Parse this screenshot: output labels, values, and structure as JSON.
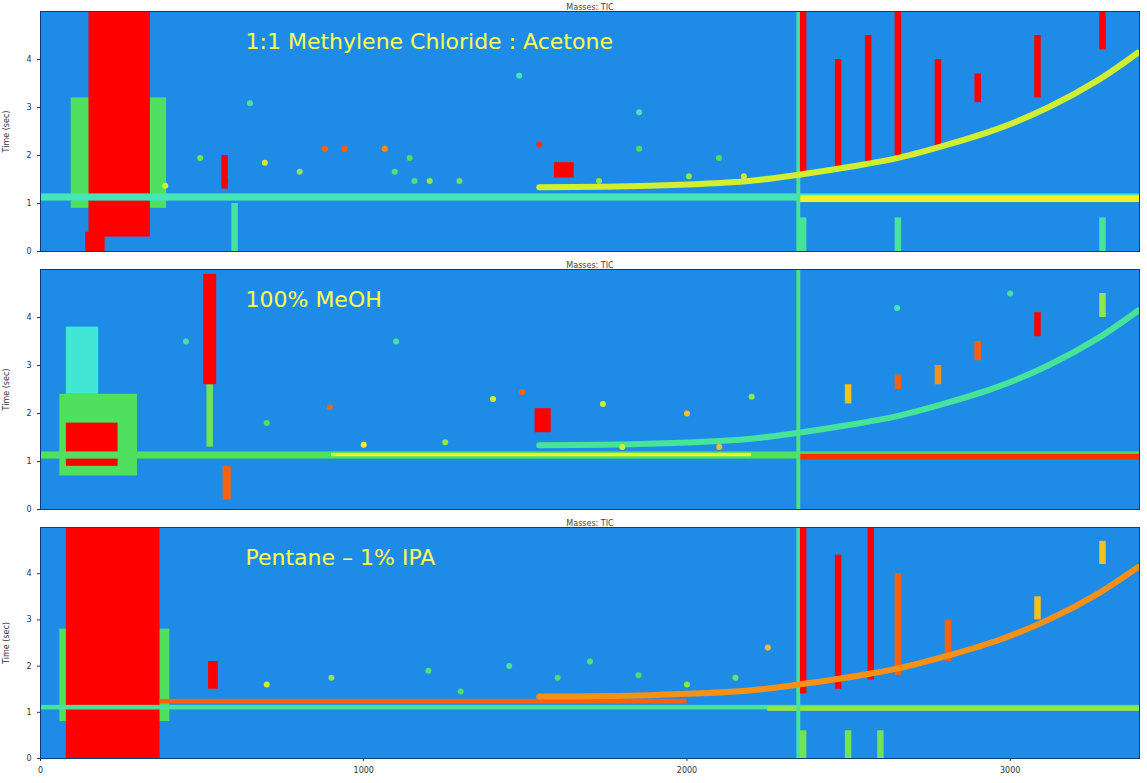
{
  "chart_data": [
    {
      "type": "heatmap",
      "title": "1:1 Methylene Chloride : Acetone",
      "subtitle": "Masses: TIC",
      "ylabel": "Time (sec)",
      "xlim": [
        0,
        3400
      ],
      "ylim": [
        0,
        5
      ],
      "yticks": [
        0,
        1,
        2,
        3,
        4
      ],
      "tick_labels": "y",
      "zlim": [
        0,
        1
      ],
      "cells": [
        {
          "x1": 95,
          "x2": 390,
          "y1": 0.9,
          "y2": 3.2,
          "z": 0.5
        },
        {
          "x1": 150,
          "x2": 340,
          "y1": 0.3,
          "y2": 5,
          "z": 1
        },
        {
          "x1": 140,
          "x2": 200,
          "y1": 0,
          "y2": 0.4,
          "z": 1
        },
        {
          "x1": 0,
          "x2": 3400,
          "y1": 1.05,
          "y2": 1.2,
          "z": 0.35
        },
        {
          "x1": 2346,
          "x2": 3400,
          "y1": 1.02,
          "y2": 1.16,
          "z": 0.75
        },
        {
          "x1": 2340,
          "x2": 2352,
          "y1": 0,
          "y2": 5,
          "z": 0.4
        },
        {
          "x1": 592,
          "x2": 612,
          "y1": 0,
          "y2": 1,
          "z": 0.4
        },
        {
          "x1": 561,
          "x2": 581,
          "y1": 1.3,
          "y2": 2.0,
          "z": 1
        },
        {
          "x1": 1590,
          "x2": 1651,
          "y1": 1.53,
          "y2": 1.85,
          "z": 1
        },
        {
          "x1": 2351,
          "x2": 2371,
          "y1": 1.6,
          "y2": 5,
          "z": 1
        },
        {
          "x1": 2459,
          "x2": 2479,
          "y1": 1.7,
          "y2": 4.0,
          "z": 1
        },
        {
          "x1": 2552,
          "x2": 2572,
          "y1": 1.8,
          "y2": 4.5,
          "z": 1
        },
        {
          "x1": 2644,
          "x2": 2664,
          "y1": 2.0,
          "y2": 5,
          "z": 1
        },
        {
          "x1": 2768,
          "x2": 2788,
          "y1": 2.2,
          "y2": 4.0,
          "z": 1
        },
        {
          "x1": 2891,
          "x2": 2911,
          "y1": 3.1,
          "y2": 3.7,
          "z": 1
        },
        {
          "x1": 3076,
          "x2": 3096,
          "y1": 3.2,
          "y2": 4.5,
          "z": 1
        },
        {
          "x1": 3277,
          "x2": 3297,
          "y1": 4.2,
          "y2": 5,
          "z": 1
        },
        {
          "x1": 2351,
          "x2": 2371,
          "y1": 0,
          "y2": 0.7,
          "z": 0.4
        },
        {
          "x1": 2644,
          "x2": 2664,
          "y1": 0,
          "y2": 0.7,
          "z": 0.4
        },
        {
          "x1": 3277,
          "x2": 3297,
          "y1": 0,
          "y2": 0.7,
          "z": 0.4
        }
      ],
      "spots": [
        {
          "x": 571,
          "y": 1.47,
          "z": 1
        },
        {
          "x": 880,
          "y": 2.14,
          "z": 0.9
        },
        {
          "x": 941,
          "y": 2.14,
          "z": 0.9
        },
        {
          "x": 1065,
          "y": 2.14,
          "z": 0.85
        },
        {
          "x": 694,
          "y": 1.85,
          "z": 0.7
        },
        {
          "x": 802,
          "y": 1.66,
          "z": 0.6
        },
        {
          "x": 1142,
          "y": 1.95,
          "z": 0.5
        },
        {
          "x": 1204,
          "y": 1.47,
          "z": 0.6
        },
        {
          "x": 1296,
          "y": 1.47,
          "z": 0.55
        },
        {
          "x": 1543,
          "y": 2.23,
          "z": 0.95
        },
        {
          "x": 1728,
          "y": 1.47,
          "z": 0.6
        },
        {
          "x": 1852,
          "y": 2.14,
          "z": 0.5
        },
        {
          "x": 2006,
          "y": 1.57,
          "z": 0.6
        },
        {
          "x": 2099,
          "y": 1.95,
          "z": 0.5
        },
        {
          "x": 2176,
          "y": 1.57,
          "z": 0.7
        },
        {
          "x": 648,
          "y": 3.09,
          "z": 0.4
        },
        {
          "x": 1481,
          "y": 3.66,
          "z": 0.35
        },
        {
          "x": 1852,
          "y": 2.9,
          "z": 0.35
        },
        {
          "x": 494,
          "y": 1.95,
          "z": 0.55
        },
        {
          "x": 386,
          "y": 1.37,
          "z": 0.7
        },
        {
          "x": 1096,
          "y": 1.66,
          "z": 0.45
        },
        {
          "x": 1157,
          "y": 1.47,
          "z": 0.45
        }
      ],
      "bleed": {
        "x": [
          1543,
          1883,
          2191,
          2346,
          2500,
          2654,
          2809,
          2963,
          3117,
          3272,
          3395
        ],
        "y": [
          1.34,
          1.37,
          1.47,
          1.6,
          1.76,
          1.95,
          2.23,
          2.56,
          3.0,
          3.57,
          4.14
        ],
        "z": 0.7
      }
    },
    {
      "type": "heatmap",
      "title": "100% MeOH",
      "subtitle": "Masses: TIC",
      "ylabel": "Time (sec)",
      "xlim": [
        0,
        3400
      ],
      "ylim": [
        0,
        5
      ],
      "yticks": [
        0,
        1,
        2,
        3,
        4
      ],
      "tick_labels": "y",
      "zlim": [
        0,
        1
      ],
      "cells": [
        {
          "x1": 60,
          "x2": 300,
          "y1": 0.7,
          "y2": 2.4,
          "z": 0.5
        },
        {
          "x1": 80,
          "x2": 180,
          "y1": 2.4,
          "y2": 3.8,
          "z": 0.3
        },
        {
          "x1": 80,
          "x2": 240,
          "y1": 0.9,
          "y2": 1.8,
          "z": 1
        },
        {
          "x1": 515,
          "x2": 535,
          "y1": 1.3,
          "y2": 2.6,
          "z": 0.55
        },
        {
          "x1": 505,
          "x2": 545,
          "y1": 2.6,
          "y2": 4.9,
          "z": 1
        },
        {
          "x1": 565,
          "x2": 590,
          "y1": 0.2,
          "y2": 0.9,
          "z": 0.9
        },
        {
          "x1": 0,
          "x2": 3400,
          "y1": 1.05,
          "y2": 1.2,
          "z": 0.5
        },
        {
          "x1": 900,
          "x2": 2200,
          "y1": 1.1,
          "y2": 1.17,
          "z": 0.75
        },
        {
          "x1": 2346,
          "x2": 3400,
          "y1": 1.03,
          "y2": 1.15,
          "z": 0.95
        },
        {
          "x1": 2340,
          "x2": 2352,
          "y1": 0,
          "y2": 5,
          "z": 0.45
        },
        {
          "x1": 1530,
          "x2": 1580,
          "y1": 1.6,
          "y2": 2.1,
          "z": 1
        },
        {
          "x1": 2490,
          "x2": 2510,
          "y1": 2.2,
          "y2": 2.6,
          "z": 0.8
        },
        {
          "x1": 2644,
          "x2": 2664,
          "y1": 2.5,
          "y2": 2.8,
          "z": 0.9
        },
        {
          "x1": 2768,
          "x2": 2788,
          "y1": 2.6,
          "y2": 3.0,
          "z": 0.85
        },
        {
          "x1": 2891,
          "x2": 2911,
          "y1": 3.1,
          "y2": 3.5,
          "z": 0.9
        },
        {
          "x1": 3076,
          "x2": 3096,
          "y1": 3.6,
          "y2": 4.1,
          "z": 1
        },
        {
          "x1": 3277,
          "x2": 3297,
          "y1": 4.0,
          "y2": 4.5,
          "z": 0.6
        }
      ],
      "spots": [
        {
          "x": 895,
          "y": 2.13,
          "z": 0.9
        },
        {
          "x": 1400,
          "y": 2.3,
          "z": 0.7
        },
        {
          "x": 1490,
          "y": 2.45,
          "z": 0.9
        },
        {
          "x": 1252,
          "y": 1.4,
          "z": 0.6
        },
        {
          "x": 1740,
          "y": 2.2,
          "z": 0.7
        },
        {
          "x": 2000,
          "y": 2.0,
          "z": 0.8
        },
        {
          "x": 2200,
          "y": 2.35,
          "z": 0.6
        },
        {
          "x": 700,
          "y": 1.8,
          "z": 0.5
        },
        {
          "x": 1000,
          "y": 1.35,
          "z": 0.75
        },
        {
          "x": 1800,
          "y": 1.3,
          "z": 0.7
        },
        {
          "x": 2100,
          "y": 1.3,
          "z": 0.8
        },
        {
          "x": 1100,
          "y": 3.5,
          "z": 0.4
        },
        {
          "x": 2650,
          "y": 4.2,
          "z": 0.35
        },
        {
          "x": 3000,
          "y": 4.5,
          "z": 0.4
        },
        {
          "x": 450,
          "y": 3.5,
          "z": 0.4
        }
      ],
      "bleed": {
        "x": [
          1543,
          1883,
          2191,
          2346,
          2500,
          2654,
          2809,
          2963,
          3117,
          3272,
          3395
        ],
        "y": [
          1.34,
          1.37,
          1.47,
          1.6,
          1.76,
          1.95,
          2.23,
          2.56,
          3.0,
          3.57,
          4.14
        ],
        "z": 0.4
      }
    },
    {
      "type": "heatmap",
      "title": "Pentane – 1% IPA",
      "subtitle": "Masses: TIC",
      "ylabel": "Time (sec)",
      "xlim": [
        0,
        3400
      ],
      "ylim": [
        0,
        5
      ],
      "yticks": [
        0,
        1,
        2,
        3,
        4
      ],
      "xticks": [
        0,
        1000,
        2000,
        3000
      ],
      "zlim": [
        0,
        1
      ],
      "cells": [
        {
          "x1": 60,
          "x2": 400,
          "y1": 0.8,
          "y2": 2.8,
          "z": 0.5
        },
        {
          "x1": 80,
          "x2": 370,
          "y1": 0,
          "y2": 5,
          "z": 1
        },
        {
          "x1": 520,
          "x2": 550,
          "y1": 1.5,
          "y2": 2.1,
          "z": 1
        },
        {
          "x1": 0,
          "x2": 3400,
          "y1": 1.05,
          "y2": 1.15,
          "z": 0.4
        },
        {
          "x1": 370,
          "x2": 2000,
          "y1": 1.18,
          "y2": 1.28,
          "z": 0.9
        },
        {
          "x1": 2250,
          "x2": 3400,
          "y1": 1.02,
          "y2": 1.12,
          "z": 0.6
        },
        {
          "x1": 2340,
          "x2": 2352,
          "y1": 0,
          "y2": 5,
          "z": 0.4
        },
        {
          "x1": 2351,
          "x2": 2371,
          "y1": 1.4,
          "y2": 5,
          "z": 1
        },
        {
          "x1": 2459,
          "x2": 2479,
          "y1": 1.5,
          "y2": 4.4,
          "z": 1
        },
        {
          "x1": 2560,
          "x2": 2580,
          "y1": 1.7,
          "y2": 5,
          "z": 1
        },
        {
          "x1": 2644,
          "x2": 2664,
          "y1": 1.8,
          "y2": 4.0,
          "z": 0.9
        },
        {
          "x1": 2799,
          "x2": 2819,
          "y1": 2.1,
          "y2": 3.0,
          "z": 0.9
        },
        {
          "x1": 3076,
          "x2": 3096,
          "y1": 3.0,
          "y2": 3.5,
          "z": 0.8
        },
        {
          "x1": 3277,
          "x2": 3297,
          "y1": 4.2,
          "y2": 4.7,
          "z": 0.8
        },
        {
          "x1": 2351,
          "x2": 2371,
          "y1": 0,
          "y2": 0.6,
          "z": 0.55
        },
        {
          "x1": 2490,
          "x2": 2510,
          "y1": 0,
          "y2": 0.6,
          "z": 0.55
        },
        {
          "x1": 2590,
          "x2": 2610,
          "y1": 0,
          "y2": 0.6,
          "z": 0.55
        }
      ],
      "spots": [
        {
          "x": 700,
          "y": 1.6,
          "z": 0.7
        },
        {
          "x": 900,
          "y": 1.75,
          "z": 0.6
        },
        {
          "x": 1200,
          "y": 1.9,
          "z": 0.45
        },
        {
          "x": 1450,
          "y": 2.0,
          "z": 0.4
        },
        {
          "x": 1600,
          "y": 1.75,
          "z": 0.5
        },
        {
          "x": 1700,
          "y": 2.1,
          "z": 0.45
        },
        {
          "x": 1850,
          "y": 1.8,
          "z": 0.5
        },
        {
          "x": 2000,
          "y": 1.6,
          "z": 0.6
        },
        {
          "x": 2150,
          "y": 1.75,
          "z": 0.55
        },
        {
          "x": 1300,
          "y": 1.45,
          "z": 0.5
        },
        {
          "x": 2250,
          "y": 2.4,
          "z": 0.8
        }
      ],
      "bleed": {
        "x": [
          1543,
          1883,
          2191,
          2346,
          2500,
          2654,
          2809,
          2963,
          3117,
          3272,
          3395
        ],
        "y": [
          1.34,
          1.37,
          1.47,
          1.6,
          1.76,
          1.95,
          2.23,
          2.56,
          3.0,
          3.57,
          4.14
        ],
        "z": 0.85
      }
    }
  ]
}
